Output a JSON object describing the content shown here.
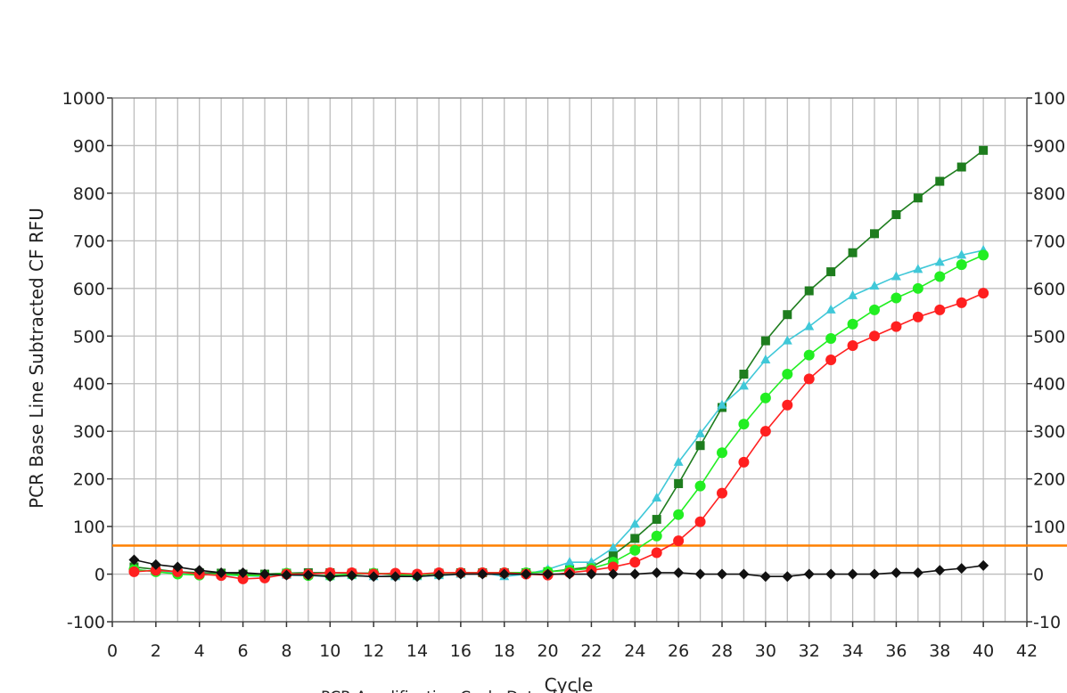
{
  "chart_data": {
    "type": "line",
    "title": "",
    "xlabel": "Cycle",
    "ylabel": "PCR Base Line Subtracted CF RFU",
    "caption": "PCR Amplification Cycle Data: [...]",
    "xlim": [
      0,
      42
    ],
    "ylim": [
      -100,
      1000
    ],
    "x_ticks": [
      0,
      2,
      4,
      6,
      8,
      10,
      12,
      14,
      16,
      18,
      20,
      22,
      24,
      26,
      28,
      30,
      32,
      34,
      36,
      38,
      40,
      42
    ],
    "y_ticks": [
      -100,
      0,
      100,
      200,
      300,
      400,
      500,
      600,
      700,
      800,
      900,
      1000
    ],
    "right_y_tick_labels": [
      "-10",
      "0",
      "100",
      "200",
      "300",
      "400",
      "500",
      "600",
      "700",
      "800",
      "900",
      "100"
    ],
    "grid": true,
    "threshold": {
      "value": 60,
      "color": "#ff8000"
    },
    "series": [
      {
        "marker": "square",
        "color": "#1e7d1e",
        "x": [
          1,
          2,
          3,
          4,
          5,
          6,
          7,
          8,
          9,
          10,
          11,
          12,
          13,
          14,
          15,
          16,
          17,
          18,
          19,
          20,
          21,
          22,
          23,
          24,
          25,
          26,
          27,
          28,
          29,
          30,
          31,
          32,
          33,
          34,
          35,
          36,
          37,
          38,
          39,
          40
        ],
        "values": [
          15,
          10,
          5,
          3,
          2,
          0,
          0,
          2,
          3,
          3,
          2,
          2,
          -2,
          -2,
          2,
          3,
          3,
          3,
          3,
          5,
          10,
          15,
          40,
          75,
          115,
          190,
          270,
          350,
          420,
          490,
          545,
          595,
          635,
          675,
          715,
          755,
          790,
          825,
          855,
          890
        ]
      },
      {
        "marker": "triangle",
        "color": "#40c8d8",
        "x": [
          1,
          2,
          3,
          4,
          5,
          6,
          7,
          8,
          9,
          10,
          11,
          12,
          13,
          14,
          15,
          16,
          17,
          18,
          19,
          20,
          21,
          22,
          23,
          24,
          25,
          26,
          27,
          28,
          29,
          30,
          31,
          32,
          33,
          34,
          35,
          36,
          37,
          38,
          39,
          40
        ],
        "values": [
          10,
          5,
          3,
          0,
          -2,
          -3,
          -5,
          -2,
          -3,
          -5,
          -3,
          -5,
          -5,
          -5,
          -3,
          0,
          3,
          -5,
          0,
          10,
          25,
          25,
          55,
          105,
          160,
          235,
          295,
          355,
          395,
          450,
          490,
          520,
          555,
          585,
          605,
          625,
          640,
          655,
          670,
          680
        ]
      },
      {
        "marker": "circle",
        "color": "#22ee22",
        "x": [
          1,
          2,
          3,
          4,
          5,
          6,
          7,
          8,
          9,
          10,
          11,
          12,
          13,
          14,
          15,
          16,
          17,
          18,
          19,
          20,
          21,
          22,
          23,
          24,
          25,
          26,
          27,
          28,
          29,
          30,
          31,
          32,
          33,
          34,
          35,
          36,
          37,
          38,
          39,
          40
        ],
        "values": [
          10,
          5,
          0,
          -2,
          0,
          -3,
          -3,
          2,
          -3,
          -3,
          0,
          2,
          0,
          -2,
          2,
          3,
          3,
          3,
          3,
          5,
          8,
          12,
          25,
          50,
          80,
          125,
          185,
          255,
          315,
          370,
          420,
          460,
          495,
          525,
          555,
          580,
          600,
          625,
          650,
          670
        ]
      },
      {
        "marker": "circle",
        "color": "#ff2020",
        "x": [
          1,
          2,
          3,
          4,
          5,
          6,
          7,
          8,
          9,
          10,
          11,
          12,
          13,
          14,
          15,
          16,
          17,
          18,
          19,
          20,
          21,
          22,
          23,
          24,
          25,
          26,
          27,
          28,
          29,
          30,
          31,
          32,
          33,
          34,
          35,
          36,
          37,
          38,
          39,
          40
        ],
        "values": [
          5,
          8,
          5,
          0,
          -3,
          -10,
          -8,
          0,
          0,
          3,
          3,
          0,
          2,
          0,
          3,
          3,
          3,
          3,
          0,
          -2,
          3,
          8,
          15,
          25,
          45,
          70,
          110,
          170,
          235,
          300,
          355,
          410,
          450,
          480,
          500,
          520,
          540,
          555,
          570,
          590
        ]
      },
      {
        "marker": "diamond",
        "color": "#111111",
        "x": [
          1,
          2,
          3,
          4,
          5,
          6,
          7,
          8,
          9,
          10,
          11,
          12,
          13,
          14,
          15,
          16,
          17,
          18,
          19,
          20,
          21,
          22,
          23,
          24,
          25,
          26,
          27,
          28,
          29,
          30,
          31,
          32,
          33,
          34,
          35,
          36,
          37,
          38,
          39,
          40
        ],
        "values": [
          30,
          20,
          15,
          8,
          3,
          3,
          0,
          -2,
          -2,
          -5,
          -3,
          -5,
          -5,
          -5,
          -2,
          0,
          0,
          0,
          0,
          0,
          0,
          0,
          0,
          0,
          3,
          3,
          0,
          0,
          0,
          -5,
          -5,
          0,
          0,
          0,
          0,
          3,
          3,
          8,
          12,
          18
        ]
      }
    ]
  }
}
